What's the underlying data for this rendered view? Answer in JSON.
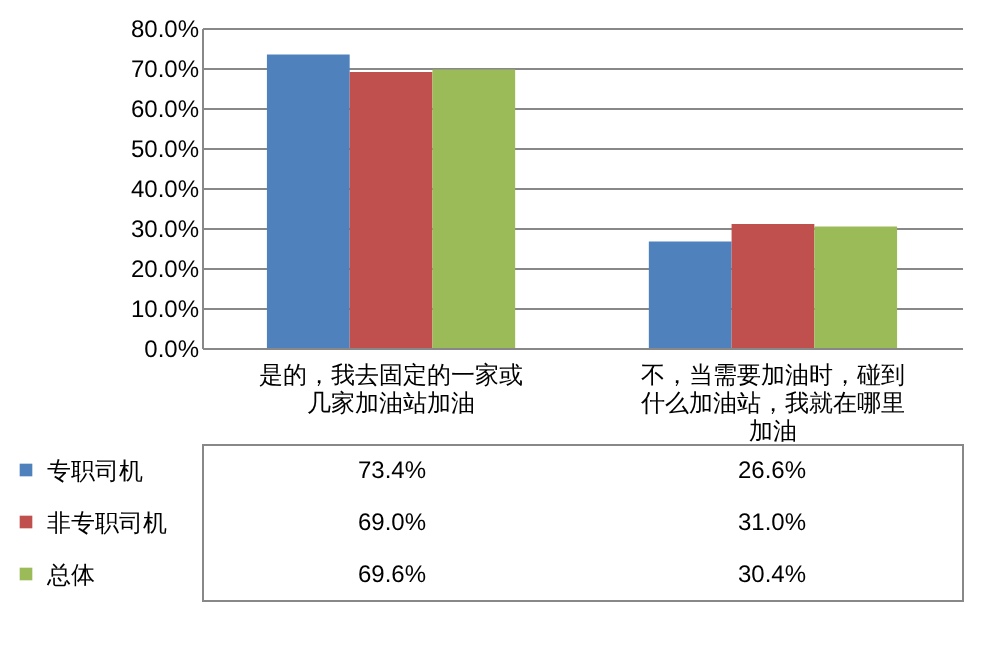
{
  "chart_data": {
    "type": "bar",
    "categories": [
      "是的，我去固定的一家或几家加油站加油",
      "不，当需要加油时，碰到什么加油站，我就在哪里加油"
    ],
    "series": [
      {
        "name": "专职司机",
        "color": "#4f81bd",
        "values": [
          73.4,
          26.6
        ],
        "value_labels": [
          "73.4%",
          "26.6%"
        ]
      },
      {
        "name": "非专职司机",
        "color": "#c0504d",
        "values": [
          69.0,
          31.0
        ],
        "value_labels": [
          "69.0%",
          "31.0%"
        ]
      },
      {
        "name": "总体",
        "color": "#9bbb59",
        "values": [
          69.6,
          30.4
        ],
        "value_labels": [
          "69.6%",
          "30.4%"
        ]
      }
    ],
    "ylim": [
      0,
      80
    ],
    "yticks": [
      {
        "value": 0,
        "label": "0.0%"
      },
      {
        "value": 10,
        "label": "10.0%"
      },
      {
        "value": 20,
        "label": "20.0%"
      },
      {
        "value": 30,
        "label": "30.0%"
      },
      {
        "value": 40,
        "label": "40.0%"
      },
      {
        "value": 50,
        "label": "50.0%"
      },
      {
        "value": 60,
        "label": "60.0%"
      },
      {
        "value": 70,
        "label": "70.0%"
      },
      {
        "value": 80,
        "label": "80.0%"
      }
    ],
    "grid": "y",
    "legend": "bottom"
  }
}
